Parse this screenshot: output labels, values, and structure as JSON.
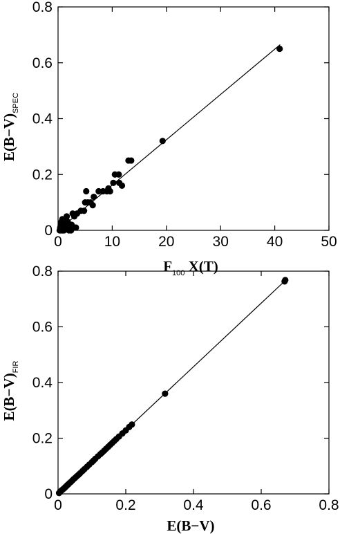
{
  "chart_data": [
    {
      "type": "scatter",
      "xlabel": "F",
      "xlabel_sub": "100",
      "xlabel_tail": " X(T)",
      "ylabel": "E(B−V)",
      "ylabel_sub": "SPEC",
      "xlim": [
        0,
        50
      ],
      "ylim": [
        0,
        0.8
      ],
      "xticks": [
        0,
        10,
        20,
        30,
        40,
        50
      ],
      "yticks": [
        0,
        0.2,
        0.4,
        0.6,
        0.8
      ],
      "xtick_labels": [
        "0",
        "10",
        "20",
        "30",
        "40",
        "50"
      ],
      "ytick_labels": [
        "0",
        "0.2",
        "0.4",
        "0.6",
        "0.8"
      ],
      "grid": false,
      "fit_line": {
        "x": [
          0,
          41
        ],
        "y": [
          0,
          0.665
        ]
      },
      "points": [
        [
          0.3,
          0.0
        ],
        [
          0.5,
          0.0
        ],
        [
          0.7,
          0.0
        ],
        [
          0.9,
          0.0
        ],
        [
          1.1,
          0.0
        ],
        [
          0.4,
          0.01
        ],
        [
          0.8,
          0.01
        ],
        [
          1.2,
          0.01
        ],
        [
          1.6,
          0.01
        ],
        [
          2.0,
          0.0
        ],
        [
          2.4,
          0.0
        ],
        [
          0.5,
          0.02
        ],
        [
          0.9,
          0.02
        ],
        [
          1.3,
          0.02
        ],
        [
          1.7,
          0.02
        ],
        [
          2.1,
          0.02
        ],
        [
          2.5,
          0.02
        ],
        [
          0.6,
          0.03
        ],
        [
          1.0,
          0.03
        ],
        [
          1.4,
          0.03
        ],
        [
          1.8,
          0.03
        ],
        [
          0.8,
          0.04
        ],
        [
          1.5,
          0.04
        ],
        [
          1.6,
          0.05
        ],
        [
          3.0,
          0.05
        ],
        [
          3.5,
          0.06
        ],
        [
          2.7,
          0.06
        ],
        [
          4.2,
          0.07
        ],
        [
          4.8,
          0.07
        ],
        [
          3.3,
          0.01
        ],
        [
          5.0,
          0.1
        ],
        [
          5.5,
          0.1
        ],
        [
          5.2,
          0.14
        ],
        [
          6.0,
          0.1
        ],
        [
          6.4,
          0.09
        ],
        [
          6.6,
          0.12
        ],
        [
          7.5,
          0.14
        ],
        [
          8.3,
          0.14
        ],
        [
          9.0,
          0.14
        ],
        [
          9.3,
          0.15
        ],
        [
          9.6,
          0.14
        ],
        [
          10.2,
          0.17
        ],
        [
          10.5,
          0.2
        ],
        [
          11.2,
          0.2
        ],
        [
          11.3,
          0.17
        ],
        [
          11.8,
          0.16
        ],
        [
          13.0,
          0.25
        ],
        [
          13.5,
          0.25
        ],
        [
          19.3,
          0.32
        ],
        [
          40.9,
          0.65
        ]
      ]
    },
    {
      "type": "scatter",
      "xlabel": "E(B−V)",
      "ylabel": "E(B−V)",
      "ylabel_sub": "FIR",
      "xlim": [
        0,
        0.8
      ],
      "ylim": [
        0,
        0.8
      ],
      "xticks": [
        0,
        0.2,
        0.4,
        0.6,
        0.8
      ],
      "yticks": [
        0,
        0.2,
        0.4,
        0.6,
        0.8
      ],
      "xtick_labels": [
        "0",
        "0.2",
        "0.4",
        "0.6",
        "0.8"
      ],
      "ytick_labels": [
        "0",
        "0.2",
        "0.4",
        "0.6",
        "0.8"
      ],
      "grid": false,
      "fit_line": {
        "x": [
          0,
          0.67
        ],
        "y": [
          0,
          0.765
        ]
      },
      "points": [
        [
          0.003,
          0.003
        ],
        [
          0.006,
          0.007
        ],
        [
          0.009,
          0.011
        ],
        [
          0.012,
          0.014
        ],
        [
          0.015,
          0.017
        ],
        [
          0.018,
          0.02
        ],
        [
          0.021,
          0.024
        ],
        [
          0.024,
          0.027
        ],
        [
          0.027,
          0.031
        ],
        [
          0.03,
          0.034
        ],
        [
          0.034,
          0.039
        ],
        [
          0.038,
          0.043
        ],
        [
          0.042,
          0.048
        ],
        [
          0.046,
          0.053
        ],
        [
          0.05,
          0.057
        ],
        [
          0.055,
          0.063
        ],
        [
          0.06,
          0.068
        ],
        [
          0.065,
          0.074
        ],
        [
          0.072,
          0.082
        ],
        [
          0.078,
          0.089
        ],
        [
          0.085,
          0.097
        ],
        [
          0.092,
          0.105
        ],
        [
          0.1,
          0.114
        ],
        [
          0.105,
          0.12
        ],
        [
          0.11,
          0.126
        ],
        [
          0.118,
          0.135
        ],
        [
          0.125,
          0.143
        ],
        [
          0.13,
          0.148
        ],
        [
          0.136,
          0.155
        ],
        [
          0.142,
          0.162
        ],
        [
          0.148,
          0.169
        ],
        [
          0.154,
          0.176
        ],
        [
          0.16,
          0.183
        ],
        [
          0.166,
          0.19
        ],
        [
          0.172,
          0.197
        ],
        [
          0.18,
          0.206
        ],
        [
          0.19,
          0.217
        ],
        [
          0.2,
          0.228
        ],
        [
          0.21,
          0.24
        ],
        [
          0.218,
          0.249
        ],
        [
          0.316,
          0.36
        ],
        [
          0.669,
          0.763
        ],
        [
          0.671,
          0.768
        ]
      ]
    }
  ]
}
